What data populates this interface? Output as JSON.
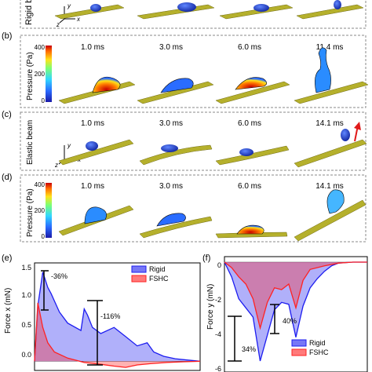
{
  "panels": {
    "a": {
      "side_label": "Rigid b"
    },
    "b": {
      "letter": "(b)",
      "times": [
        "1.0 ms",
        "3.0 ms",
        "6.0 ms",
        "11.4 ms"
      ],
      "colorbar": {
        "label": "Pressure (Pa)",
        "ticks": [
          "400",
          "200",
          "0"
        ]
      }
    },
    "c": {
      "letter": "(c)",
      "side_label": "Elastic beam",
      "times": [
        "1.0 ms",
        "3.0 ms",
        "6.0 ms",
        "14.1 ms"
      ]
    },
    "d": {
      "letter": "(d)",
      "times": [
        "1.0 ms",
        "3.0 ms",
        "6.0 ms",
        "14.1 ms"
      ],
      "colorbar": {
        "label": "Pressure (Pa)",
        "ticks": [
          "400",
          "200",
          "0"
        ]
      }
    }
  },
  "axes_glyph": {
    "y": "y",
    "x": "x",
    "z": "z"
  },
  "colors": {
    "beam": "#b5b02c",
    "droplet": "#1f3fd6",
    "rigid": "#1c1cf0",
    "fshc": "#ff2222",
    "arrow": "#e01a1a"
  },
  "chart_data": [
    {
      "type": "line",
      "panel": "(e)",
      "ylabel": "Force x (mN)",
      "ylim": [
        -0.15,
        1.6
      ],
      "yticks": [
        "1.5",
        "1.0",
        "0.5",
        "0.0"
      ],
      "legend": {
        "placement": "top-right",
        "entries": [
          "Rigid",
          "FSHC"
        ]
      },
      "annotations": [
        "-36%",
        "-116%"
      ],
      "series": [
        {
          "name": "Rigid",
          "x": [
            0,
            0.02,
            0.05,
            0.08,
            0.1,
            0.15,
            0.2,
            0.28,
            0.3,
            0.32,
            0.35,
            0.4,
            0.48,
            0.55,
            0.62,
            0.68,
            0.72,
            0.78,
            0.85,
            0.92,
            1.0
          ],
          "values": [
            0.0,
            0.9,
            1.45,
            1.2,
            1.1,
            0.8,
            0.62,
            0.5,
            0.85,
            0.75,
            0.55,
            0.45,
            0.55,
            0.4,
            0.25,
            0.3,
            0.15,
            0.08,
            0.04,
            0.02,
            0.0
          ]
        },
        {
          "name": "FSHC",
          "x": [
            0,
            0.02,
            0.05,
            0.08,
            0.12,
            0.2,
            0.3,
            0.4,
            0.48,
            0.55,
            0.62,
            0.7,
            0.8,
            0.9,
            1.0
          ],
          "values": [
            0.0,
            0.95,
            0.55,
            0.3,
            0.15,
            0.05,
            -0.02,
            -0.05,
            -0.08,
            -0.1,
            -0.06,
            -0.04,
            -0.02,
            -0.01,
            0.0
          ]
        }
      ]
    },
    {
      "type": "line",
      "panel": "(f)",
      "ylabel": "Force y (mN)",
      "ylim": [
        -6,
        0.3
      ],
      "yticks": [
        "0",
        "-2",
        "-4",
        "-6"
      ],
      "legend": {
        "placement": "bottom-right",
        "entries": [
          "Rigid",
          "FSHC"
        ]
      },
      "annotations": [
        "40%",
        "34%"
      ],
      "series": [
        {
          "name": "Rigid",
          "x": [
            0,
            0.05,
            0.1,
            0.15,
            0.2,
            0.25,
            0.3,
            0.35,
            0.4,
            0.45,
            0.5,
            0.55,
            0.6,
            0.65,
            0.7,
            0.75,
            0.8,
            0.9,
            1.0
          ],
          "values": [
            0.0,
            -0.8,
            -2.0,
            -2.5,
            -3.0,
            -5.4,
            -4.0,
            -2.6,
            -2.2,
            -2.3,
            -4.1,
            -2.4,
            -1.4,
            -0.9,
            -0.5,
            -0.2,
            -0.05,
            0.0,
            0.0
          ]
        },
        {
          "name": "FSHC",
          "x": [
            0,
            0.05,
            0.1,
            0.15,
            0.2,
            0.25,
            0.3,
            0.35,
            0.4,
            0.45,
            0.5,
            0.55,
            0.6,
            0.7,
            0.8,
            0.9,
            1.0
          ],
          "values": [
            0.0,
            -0.3,
            -0.8,
            -1.2,
            -2.0,
            -3.6,
            -2.2,
            -1.4,
            -1.5,
            -1.2,
            -2.5,
            -1.0,
            -0.4,
            -0.2,
            -0.05,
            0.0,
            0.0
          ]
        }
      ]
    }
  ]
}
